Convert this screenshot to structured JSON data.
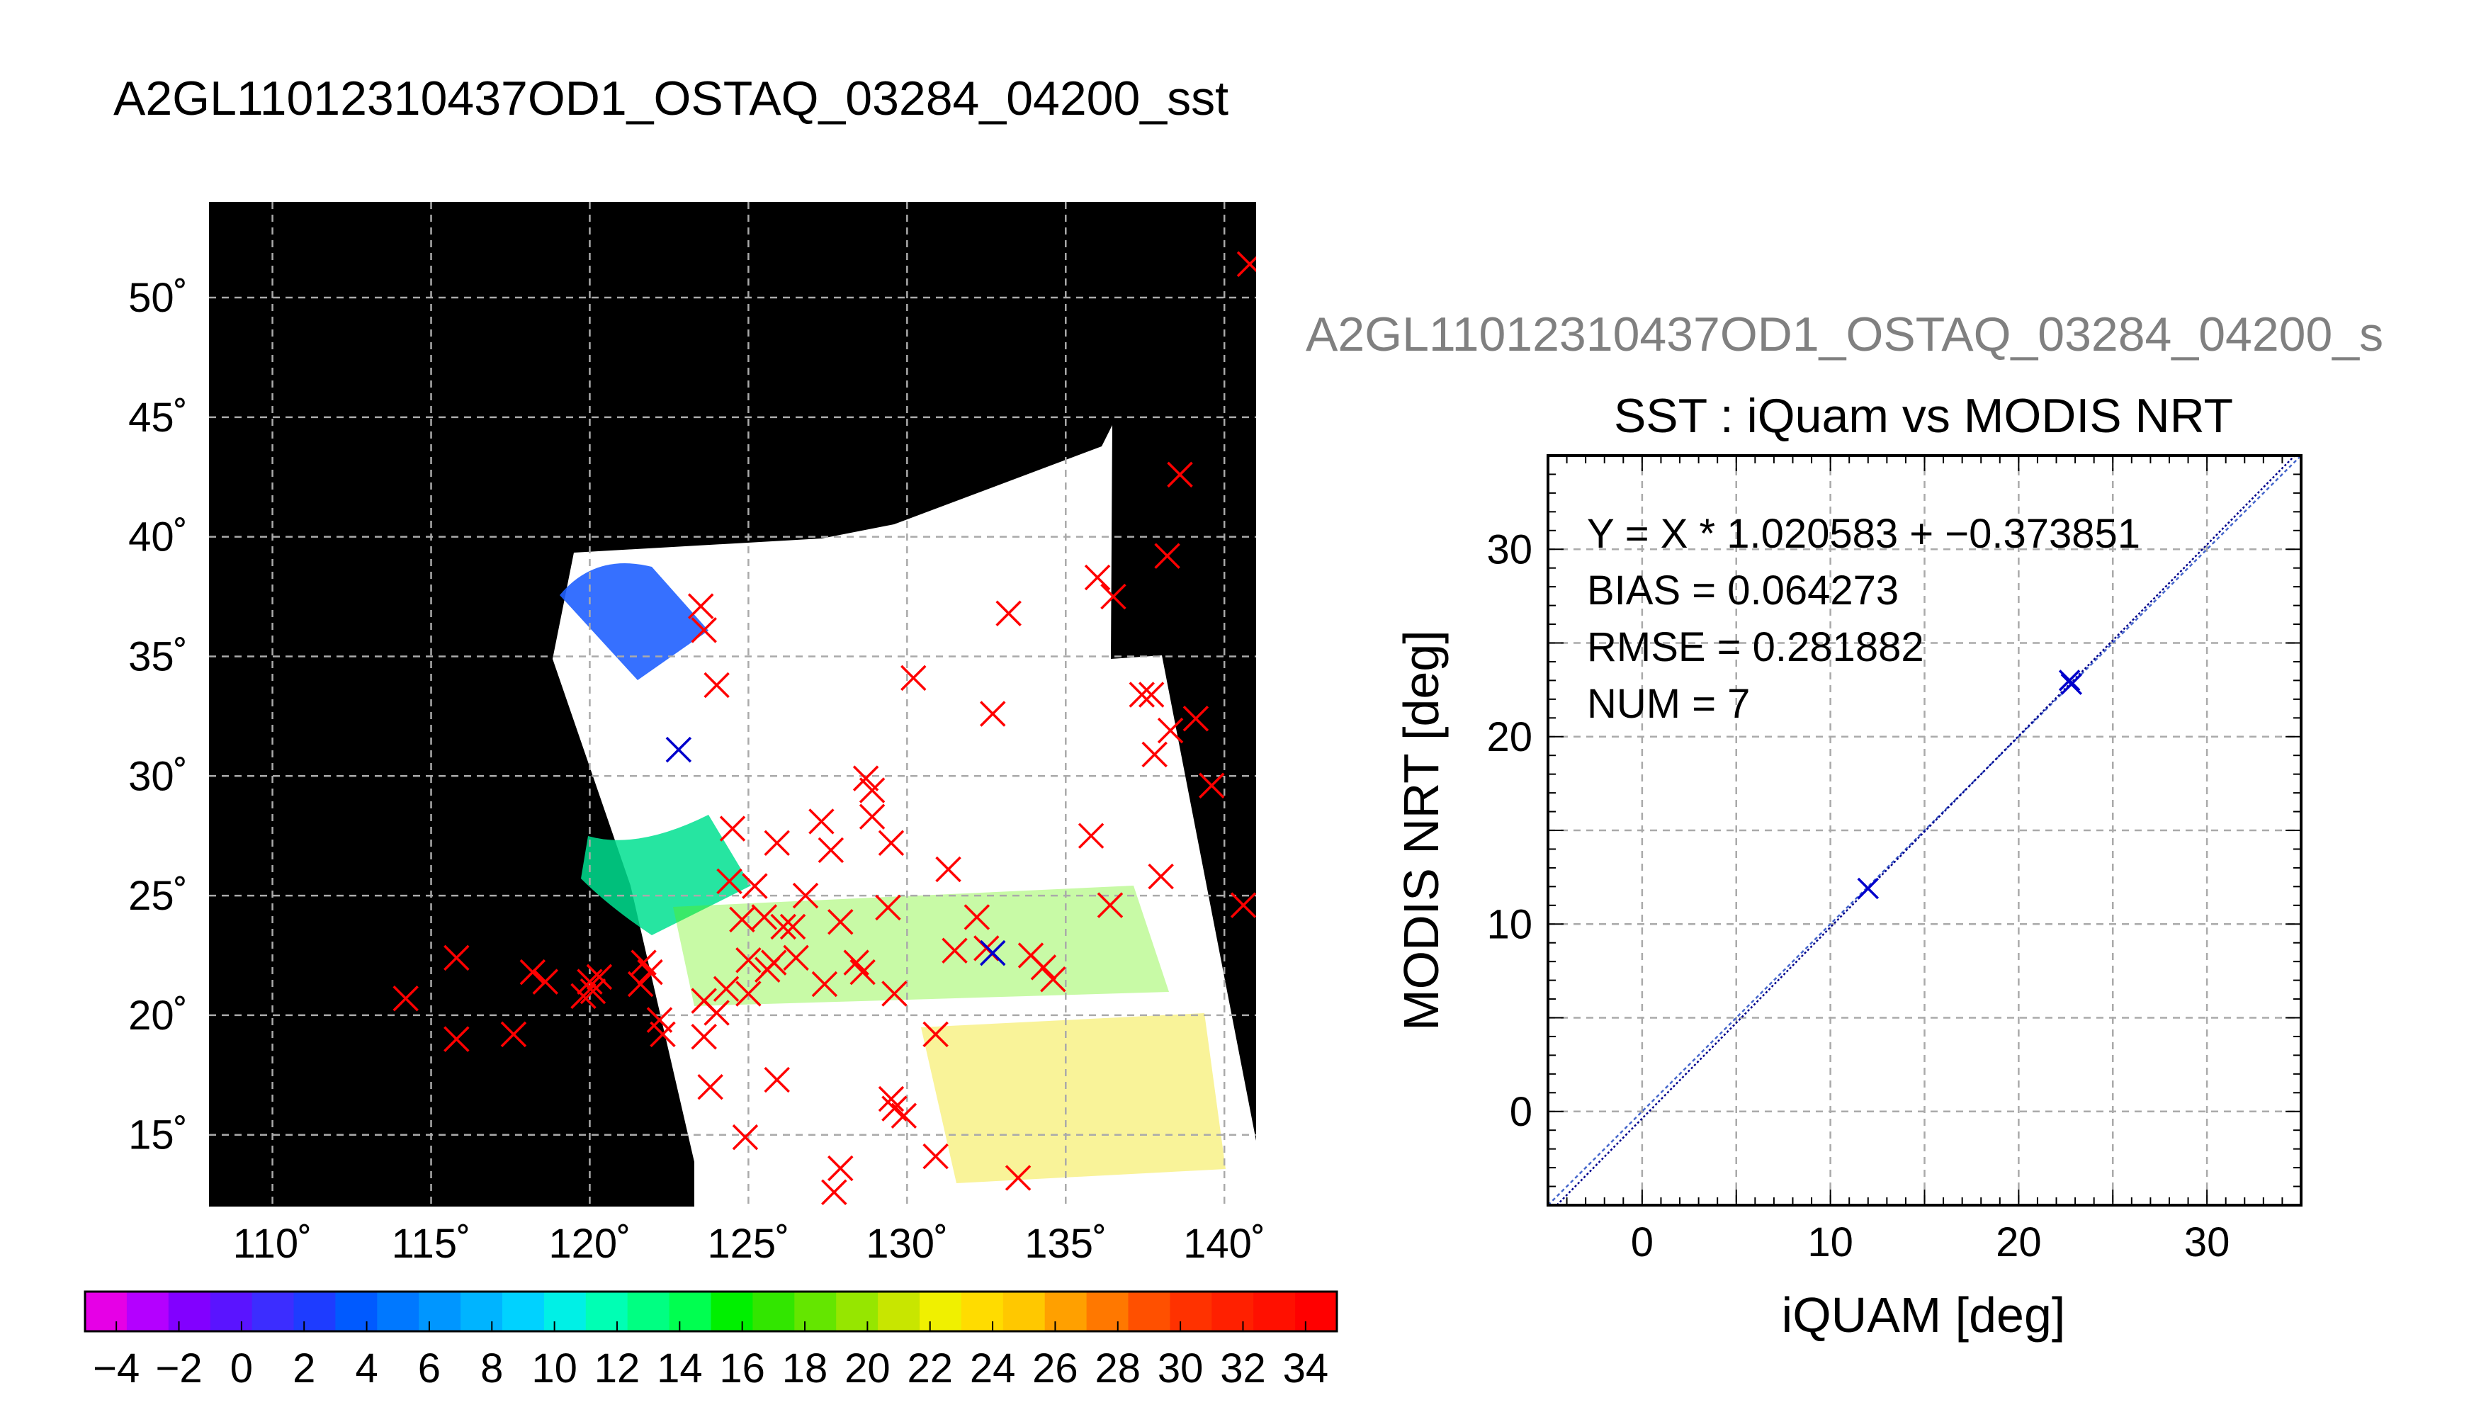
{
  "figure": {
    "title": "A2GL11012310437OD1_OSTAQ_03284_04200_sst",
    "scatter_title_gray": "A2GL11012310437OD1_OSTAQ_03284_04200_s",
    "colors": {
      "text": "#000000",
      "gray_title": "#808080",
      "map_bg": "#000000",
      "swath": "#ffffff",
      "grid": "#aaaaaa",
      "marker_red": "#ff0000",
      "marker_blue": "#0000cc",
      "fit_line": "#00008b"
    }
  },
  "chart_data": [
    {
      "type": "scatter",
      "kind": "map",
      "xlim": [
        108,
        141
      ],
      "ylim": [
        12,
        54
      ],
      "x_ticks": [
        "110˚",
        "115˚",
        "120˚",
        "125˚",
        "130˚",
        "135˚",
        "140˚"
      ],
      "y_ticks": [
        "15˚",
        "20˚",
        "25˚",
        "30˚",
        "35˚",
        "40˚",
        "45˚",
        "50˚"
      ],
      "grid": true,
      "series": [
        {
          "marker": "x",
          "color": "#ff0000",
          "points": [
            [
              114.2,
              20.7
            ],
            [
              115.8,
              22.4
            ],
            [
              115.8,
              19.0
            ],
            [
              117.6,
              19.2
            ],
            [
              118.2,
              21.8
            ],
            [
              118.6,
              21.4
            ],
            [
              119.8,
              20.8
            ],
            [
              120.0,
              21.4
            ],
            [
              120.3,
              21.6
            ],
            [
              120.1,
              21.0
            ],
            [
              121.7,
              22.2
            ],
            [
              121.9,
              21.8
            ],
            [
              121.6,
              21.3
            ],
            [
              122.2,
              19.8
            ],
            [
              122.3,
              19.2
            ],
            [
              123.5,
              37.1
            ],
            [
              123.6,
              36.1
            ],
            [
              124.0,
              33.8
            ],
            [
              123.6,
              20.6
            ],
            [
              124.0,
              20.1
            ],
            [
              123.6,
              19.1
            ],
            [
              123.8,
              17.0
            ],
            [
              124.3,
              21.1
            ],
            [
              124.5,
              27.8
            ],
            [
              124.4,
              25.6
            ],
            [
              124.8,
              24.0
            ],
            [
              125.0,
              22.3
            ],
            [
              125.0,
              20.9
            ],
            [
              125.2,
              25.4
            ],
            [
              125.5,
              24.1
            ],
            [
              125.6,
              21.9
            ],
            [
              125.8,
              22.2
            ],
            [
              125.9,
              27.2
            ],
            [
              126.1,
              23.7
            ],
            [
              125.9,
              17.3
            ],
            [
              126.4,
              23.7
            ],
            [
              126.5,
              22.4
            ],
            [
              126.8,
              25.0
            ],
            [
              124.9,
              14.9
            ],
            [
              127.3,
              28.1
            ],
            [
              127.6,
              26.9
            ],
            [
              127.9,
              23.9
            ],
            [
              127.4,
              21.3
            ],
            [
              127.9,
              13.6
            ],
            [
              127.7,
              12.6
            ],
            [
              128.7,
              29.9
            ],
            [
              128.9,
              29.4
            ],
            [
              128.4,
              22.2
            ],
            [
              128.6,
              21.8
            ],
            [
              128.9,
              28.3
            ],
            [
              129.5,
              27.2
            ],
            [
              129.4,
              24.5
            ],
            [
              129.6,
              20.9
            ],
            [
              129.5,
              16.5
            ],
            [
              129.6,
              16.1
            ],
            [
              129.9,
              15.8
            ],
            [
              130.2,
              34.1
            ],
            [
              130.9,
              19.2
            ],
            [
              131.3,
              26.1
            ],
            [
              131.5,
              22.7
            ],
            [
              130.9,
              14.1
            ],
            [
              132.2,
              24.1
            ],
            [
              132.5,
              22.8
            ],
            [
              132.7,
              32.6
            ],
            [
              133.2,
              36.8
            ],
            [
              133.5,
              13.2
            ],
            [
              133.9,
              22.5
            ],
            [
              134.3,
              22.0
            ],
            [
              134.6,
              21.5
            ],
            [
              135.8,
              27.5
            ],
            [
              136.0,
              38.3
            ],
            [
              136.5,
              37.5
            ],
            [
              136.4,
              24.6
            ],
            [
              137.4,
              33.4
            ],
            [
              137.7,
              33.4
            ],
            [
              137.8,
              30.9
            ],
            [
              138.0,
              25.8
            ],
            [
              138.2,
              39.2
            ],
            [
              138.6,
              42.6
            ],
            [
              138.3,
              31.9
            ],
            [
              139.1,
              32.4
            ],
            [
              139.6,
              29.6
            ],
            [
              140.6,
              24.6
            ],
            [
              140.8,
              51.4
            ]
          ]
        },
        {
          "marker": "x",
          "color": "#0000cc",
          "points": [
            [
              122.8,
              31.1
            ],
            [
              132.7,
              22.6
            ]
          ]
        }
      ],
      "colorbar": {
        "ticks": [
          "−4",
          "−2",
          "0",
          "2",
          "4",
          "6",
          "8",
          "10",
          "12",
          "14",
          "16",
          "18",
          "20",
          "22",
          "24",
          "26",
          "28",
          "30",
          "32",
          "34"
        ],
        "range": [
          -5,
          35
        ],
        "colors": [
          "#e600e6",
          "#b400ff",
          "#8200ff",
          "#5a14ff",
          "#3c2dff",
          "#1e3cff",
          "#005aff",
          "#0078ff",
          "#0096ff",
          "#00b4ff",
          "#00d2ff",
          "#00f0e6",
          "#00ffb4",
          "#00ff82",
          "#00ff50",
          "#00f000",
          "#32e600",
          "#64e600",
          "#96e600",
          "#c8e600",
          "#f0f000",
          "#ffdc00",
          "#ffc800",
          "#ffa000",
          "#ff7800",
          "#ff5000",
          "#ff3200",
          "#ff2000",
          "#ff1000",
          "#ff0000"
        ]
      }
    },
    {
      "type": "scatter",
      "title": "SST : iQuam vs MODIS NRT",
      "xlabel": "iQUAM [deg]",
      "ylabel": "MODIS NRT [deg]",
      "xlim": [
        -5,
        35
      ],
      "ylim": [
        -5,
        35
      ],
      "x_ticks": [
        0,
        10,
        20,
        30
      ],
      "y_ticks": [
        0,
        10,
        20,
        30
      ],
      "grid": true,
      "annotations": [
        "Y = X * 1.020583 + −0.373851",
        "BIAS = 0.064273",
        "RMSE = 0.281882",
        "NUM = 7"
      ],
      "series": [
        {
          "marker": "x",
          "color": "#0000cc",
          "points": [
            [
              12.0,
              11.9
            ],
            [
              22.7,
              23.0
            ],
            [
              22.8,
              22.8
            ]
          ]
        }
      ],
      "fit": {
        "slope": 1.020583,
        "intercept": -0.373851
      }
    }
  ]
}
